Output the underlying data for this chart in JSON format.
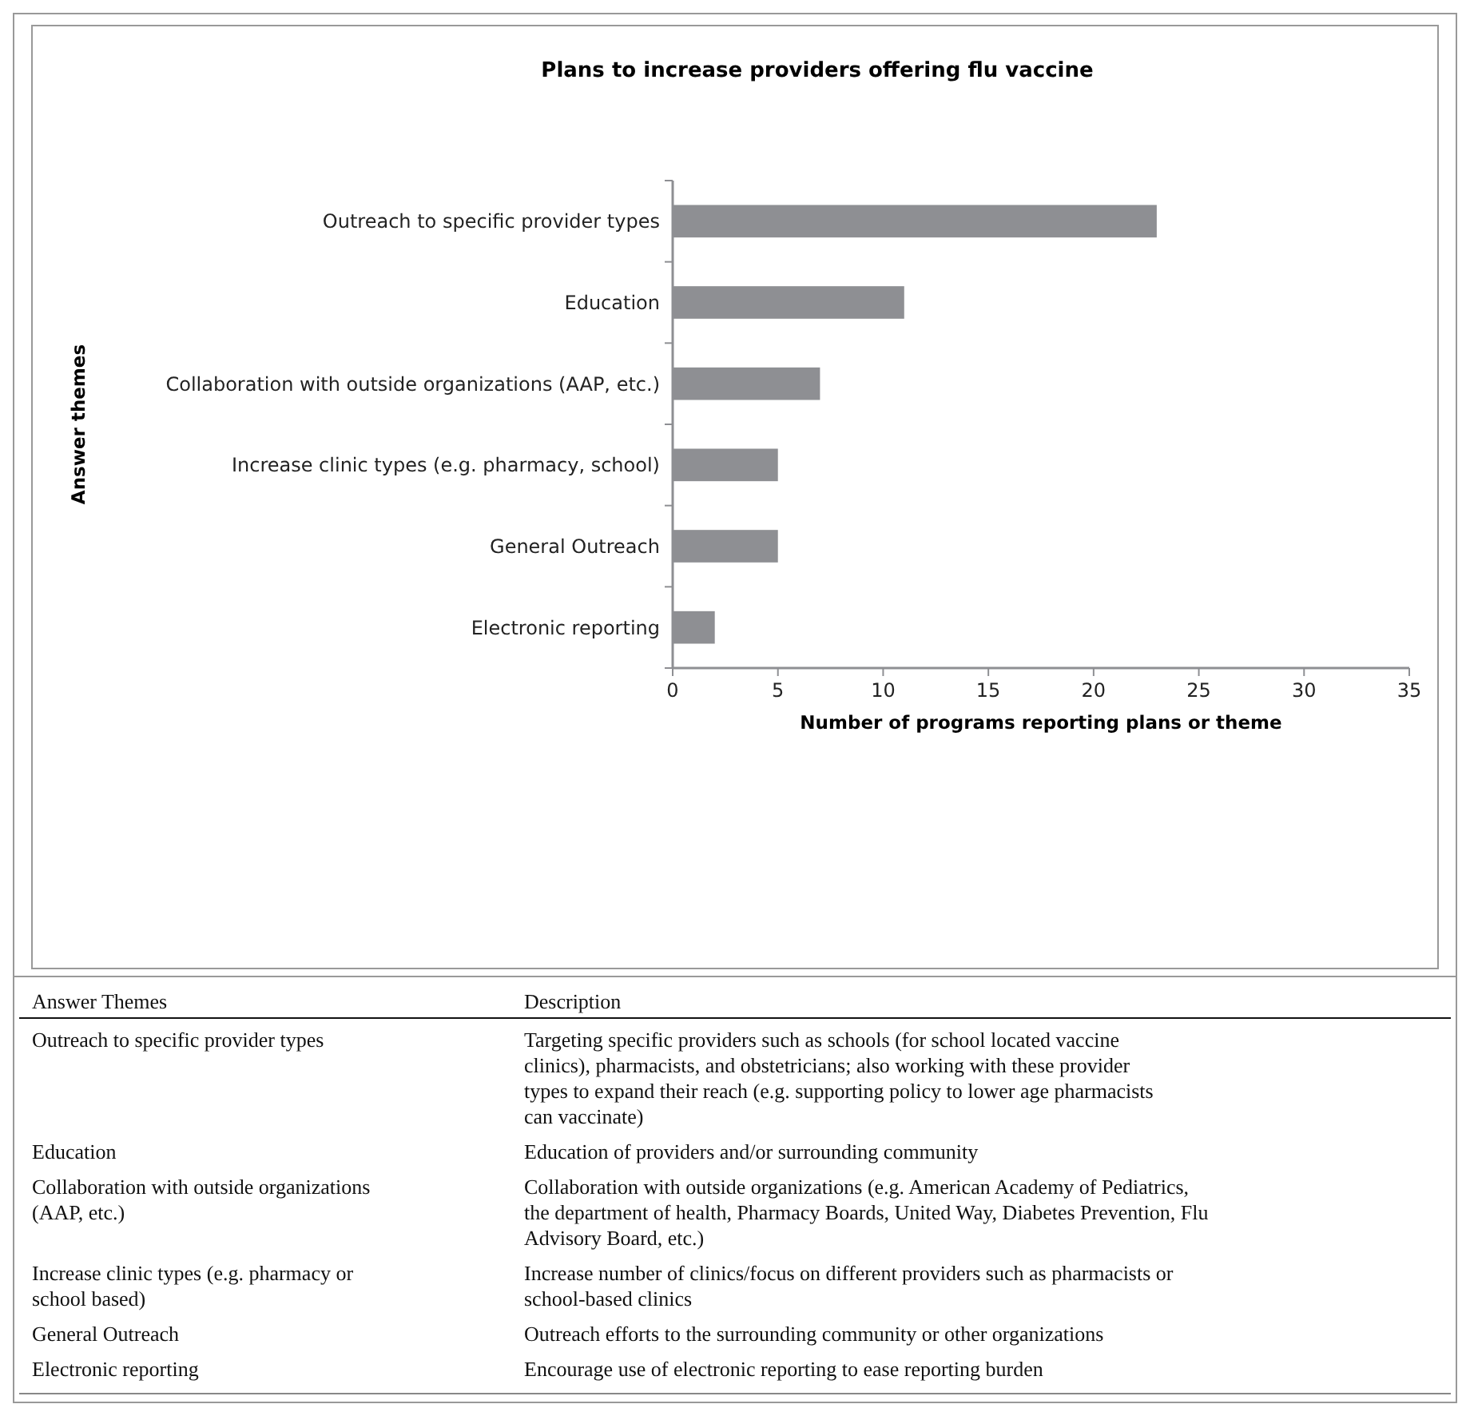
{
  "chart_data": {
    "type": "bar",
    "orientation": "horizontal",
    "title": "Plans to increase providers offering flu vaccine",
    "xlabel": "Number of programs reporting plans or theme",
    "ylabel": "Answer themes",
    "categories": [
      "Outreach to specific provider types",
      "Education",
      "Collaboration with outside organizations (AAP, etc.)",
      "Increase clinic types (e.g. pharmacy, school)",
      "General Outreach",
      "Electronic reporting"
    ],
    "values": [
      23,
      11,
      7,
      5,
      5,
      2
    ],
    "color": "#8e8f93",
    "xlim": [
      0,
      35
    ],
    "xticks": [
      0,
      5,
      10,
      15,
      20,
      25,
      30,
      35
    ],
    "grid": false,
    "annotations": [
      "Answer Themes",
      "Description",
      "Outreach to specific provider types",
      "Targeting specific providers such as schools (for school located vaccine clinics), pharmacists, and obstetricians; also working with these provider types to expand their reach (e.g. supporting policy to lower age pharmacists can vaccinate)",
      "Education",
      "Education of providers and/or surrounding community",
      "Collaboration with outside organizations (AAP, etc.)",
      "Collaboration with outside organizations (e.g. American Academy of Pediatrics, the department of health, Pharmacy Boards, United Way, Diabetes Prevention, Flu Advisory Board, etc.)",
      "Increase clinic types (e.g. pharmacy or school based)",
      "Increase number of clinics/focus on different providers such as pharmacists or school-based clinics",
      "General Outreach",
      "Outreach efforts to the surrounding community or other organizations",
      "Electronic reporting",
      "Encourage use of electronic reporting to ease reporting burden"
    ]
  }
}
